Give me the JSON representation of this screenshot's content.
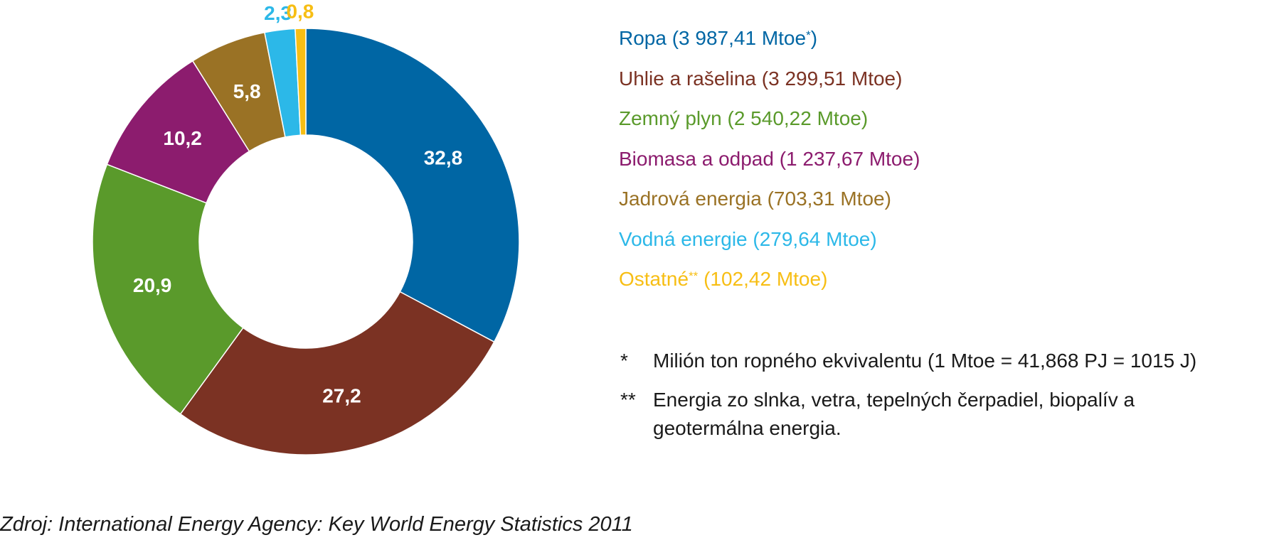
{
  "chart_data": {
    "type": "pie",
    "categories": [
      "Ropa",
      "Uhlie a rašelina",
      "Zemný plyn",
      "Biomasa a odpad",
      "Jadrová energia",
      "Vodná energie",
      "Ostatné"
    ],
    "values": [
      32.8,
      27.2,
      20.9,
      10.2,
      5.8,
      2.3,
      0.8
    ],
    "value_labels": [
      "32,8",
      "27,2",
      "20,9",
      "10,2",
      "5,8",
      "2,3",
      "0,8"
    ],
    "colors": [
      "#0066a4",
      "#7b3223",
      "#5a9a2b",
      "#8c1c6e",
      "#9a7225",
      "#2cb8e8",
      "#f7be14"
    ],
    "label_colors": [
      "#ffffff",
      "#ffffff",
      "#ffffff",
      "#ffffff",
      "#ffffff",
      "#2cb8e8",
      "#f7be14"
    ],
    "donut": true,
    "legend_placement": "right"
  },
  "legend": [
    {
      "name": "Ropa",
      "amount": "(3 987,41 Mtoe",
      "sup": "*",
      "close": ")",
      "color": "#0066a4"
    },
    {
      "name": "Uhlie a rašelina",
      "amount": "(3 299,51 Mtoe)",
      "sup": "",
      "close": "",
      "color": "#7b3223"
    },
    {
      "name": "Zemný plyn",
      "amount": "(2 540,22 Mtoe)",
      "sup": "",
      "close": "",
      "color": "#5a9a2b"
    },
    {
      "name": "Biomasa a odpad",
      "amount": "(1 237,67 Mtoe)",
      "sup": "",
      "close": "",
      "color": "#8c1c6e"
    },
    {
      "name": "Jadrová energia",
      "amount": "(703,31 Mtoe)",
      "sup": "",
      "close": "",
      "color": "#9a7225"
    },
    {
      "name": "Vodná energie",
      "amount": "(279,64 Mtoe)",
      "sup": "",
      "close": "",
      "color": "#2cb8e8"
    },
    {
      "name": "Ostatné",
      "amount": "(102,42 Mtoe)",
      "sup": "**",
      "close": "",
      "color": "#f7be14"
    }
  ],
  "notes": [
    {
      "mark": "*",
      "text": "Milión ton ropného ekvivalentu (1 Mtoe = 41,868 PJ = 1015 J)"
    },
    {
      "mark": "**",
      "text": "Energia zo slnka, vetra, tepelných čerpadiel, biopalív a geotermálna energia."
    }
  ],
  "source": "Zdroj: International Energy Agency: Key World Energy Statistics 2011"
}
